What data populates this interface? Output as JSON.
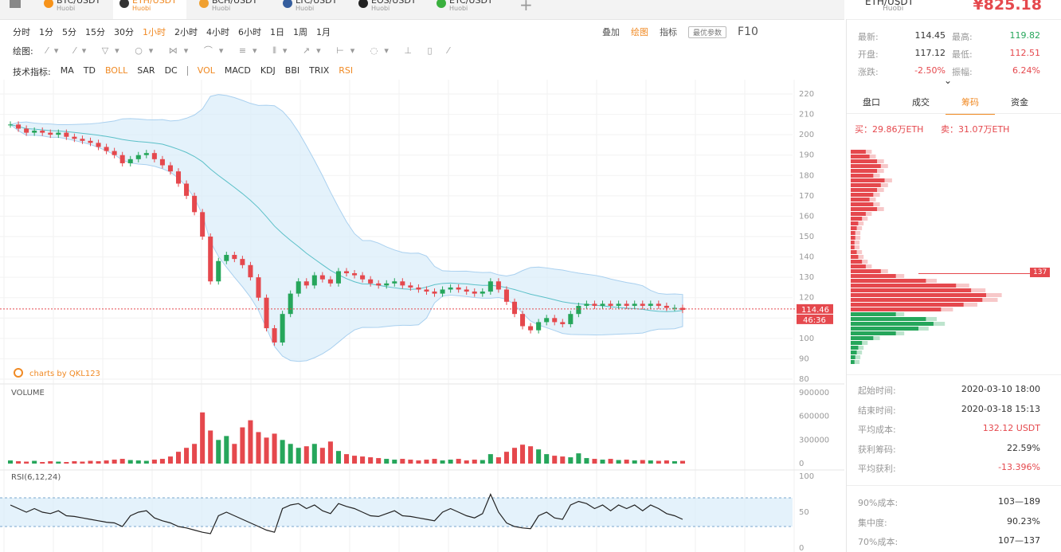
{
  "tabs": [
    {
      "symbol": "BTC/USDT",
      "exchange": "Huobi",
      "color": "#f7931a"
    },
    {
      "symbol": "ETH/USDT",
      "exchange": "Huobi",
      "color": "#333333",
      "active": true
    },
    {
      "symbol": "BCH/USDT",
      "exchange": "Huobi",
      "color": "#f0a030"
    },
    {
      "symbol": "LTC/USDT",
      "exchange": "Huobi",
      "color": "#345d9d"
    },
    {
      "symbol": "EOS/USDT",
      "exchange": "Huobi",
      "color": "#222222"
    },
    {
      "symbol": "ETC/USDT",
      "exchange": "Huobi",
      "color": "#3ab03e"
    }
  ],
  "header": {
    "symbol": "ETH/USDT",
    "exchange": "Huobi",
    "price": "¥825.18"
  },
  "periods": [
    {
      "label": "分时"
    },
    {
      "label": "1分"
    },
    {
      "label": "5分"
    },
    {
      "label": "15分"
    },
    {
      "label": "30分"
    },
    {
      "label": "1小时",
      "active": true
    },
    {
      "label": "2小时"
    },
    {
      "label": "4小时"
    },
    {
      "label": "6小时"
    },
    {
      "label": "1日"
    },
    {
      "label": "1周"
    },
    {
      "label": "1月"
    }
  ],
  "tools": [
    "叠加",
    "绘图",
    "指标"
  ],
  "best_params": "最优参数",
  "f10": "F10",
  "draw_label": "绘图:",
  "indicator_label": "技术指标:",
  "main_indicators": [
    {
      "name": "MA"
    },
    {
      "name": "TD"
    },
    {
      "name": "BOLL",
      "active": true
    },
    {
      "name": "SAR"
    },
    {
      "name": "DC"
    }
  ],
  "sub_indicators": [
    {
      "name": "VOL",
      "active": true
    },
    {
      "name": "MACD"
    },
    {
      "name": "KDJ"
    },
    {
      "name": "BBI"
    },
    {
      "name": "TRIX"
    },
    {
      "name": "RSI",
      "active": true
    }
  ],
  "watermark": "charts by QKL123",
  "chart_data": [
    {
      "type": "candlestick",
      "ylim": [
        80,
        220
      ],
      "yticks": [
        80,
        90,
        100,
        110,
        120,
        130,
        140,
        150,
        160,
        170,
        180,
        190,
        200,
        210,
        220
      ],
      "grid": true,
      "up_color": "#26a65b",
      "down_color": "#e5484d",
      "values": [
        205,
        203,
        201,
        202,
        201,
        200,
        201,
        199,
        198,
        197,
        196,
        194,
        192,
        190,
        186,
        188,
        190,
        191,
        188,
        185,
        182,
        176,
        170,
        162,
        150,
        128,
        138,
        141,
        139,
        136,
        130,
        120,
        105,
        98,
        112,
        122,
        128,
        126,
        131,
        129,
        127,
        133,
        132,
        131,
        129,
        127,
        126,
        127,
        128,
        126,
        125,
        124,
        123,
        122,
        124,
        125,
        124,
        123,
        122,
        123,
        128,
        124,
        118,
        112,
        106,
        104,
        108,
        110,
        108,
        107,
        112,
        116,
        117,
        116,
        117,
        116,
        117,
        116,
        117,
        116,
        117,
        116,
        115,
        115,
        114
      ],
      "last_price": 114.46,
      "countdown": "46:36"
    },
    {
      "type": "bar",
      "title": "VOLUME",
      "ylim": [
        0,
        900000
      ],
      "yticks": [
        0,
        300000,
        600000,
        900000
      ],
      "values": [
        40000,
        30000,
        25000,
        35000,
        20000,
        30000,
        25000,
        20000,
        30000,
        25000,
        35000,
        30000,
        40000,
        50000,
        60000,
        45000,
        40000,
        35000,
        50000,
        60000,
        90000,
        150000,
        200000,
        250000,
        650000,
        420000,
        300000,
        350000,
        250000,
        460000,
        550000,
        400000,
        330000,
        380000,
        300000,
        250000,
        200000,
        220000,
        250000,
        200000,
        280000,
        160000,
        120000,
        100000,
        90000,
        80000,
        70000,
        60000,
        50000,
        60000,
        50000,
        40000,
        50000,
        60000,
        40000,
        50000,
        60000,
        40000,
        50000,
        45000,
        120000,
        80000,
        150000,
        200000,
        240000,
        220000,
        180000,
        120000,
        100000,
        90000,
        80000,
        130000,
        70000,
        60000,
        50000,
        60000,
        45000,
        50000,
        40000,
        45000,
        40000,
        35000,
        40000,
        30000,
        35000
      ]
    },
    {
      "type": "line",
      "title": "RSI(6,12,24)",
      "ylim": [
        0,
        100
      ],
      "yticks": [
        0,
        50,
        100
      ],
      "band": [
        30,
        70
      ],
      "color": "#222222",
      "values": [
        60,
        55,
        50,
        55,
        50,
        48,
        52,
        45,
        44,
        42,
        40,
        38,
        36,
        35,
        30,
        45,
        50,
        52,
        42,
        38,
        35,
        30,
        28,
        25,
        22,
        20,
        45,
        50,
        45,
        40,
        35,
        30,
        25,
        22,
        55,
        60,
        62,
        55,
        60,
        52,
        48,
        62,
        58,
        55,
        50,
        45,
        44,
        48,
        52,
        45,
        44,
        42,
        40,
        38,
        50,
        55,
        50,
        45,
        42,
        48,
        75,
        50,
        35,
        30,
        28,
        27,
        45,
        50,
        42,
        40,
        60,
        65,
        62,
        55,
        60,
        52,
        60,
        55,
        60,
        52,
        60,
        55,
        48,
        45,
        40
      ]
    }
  ],
  "quote": [
    [
      "最新:",
      "114.45",
      "最高:",
      "119.82"
    ],
    [
      "开盘:",
      "117.12",
      "最低:",
      "112.51"
    ],
    [
      "涨跌:",
      "-2.50%",
      "振幅:",
      "6.24%"
    ]
  ],
  "panel_tabs": [
    {
      "label": "盘口"
    },
    {
      "label": "成交"
    },
    {
      "label": "筹码",
      "active": true
    },
    {
      "label": "资金"
    }
  ],
  "buy": "买：29.86万ETH",
  "sell": "卖：31.07万ETH",
  "chips": {
    "tag": "137",
    "series": [
      {
        "color": "#e5484d",
        "values": [
          20,
          25,
          35,
          40,
          35,
          30,
          45,
          40,
          35,
          30,
          25,
          30,
          35,
          20,
          15,
          10,
          8,
          6,
          6,
          5,
          5,
          8,
          10,
          15,
          20,
          40,
          60,
          100,
          140,
          160,
          180,
          175,
          150,
          120
        ]
      },
      {
        "color": "#26a65b",
        "values": [
          60,
          100,
          110,
          90,
          60,
          30,
          15,
          10,
          8,
          6,
          5
        ]
      }
    ]
  },
  "stats": [
    [
      "起始时间:",
      "2020-03-10 18:00"
    ],
    [
      "结束时间:",
      "2020-03-18 15:13"
    ],
    [
      "平均成本:",
      "132.12 USDT"
    ],
    [
      "获利筹码:",
      "22.59%"
    ],
    [
      "平均获利:",
      "-13.396%"
    ]
  ],
  "stats2": [
    [
      "90%成本:",
      "103—189"
    ],
    [
      "集中度:",
      "90.23%"
    ],
    [
      "70%成本:",
      "107—137"
    ]
  ]
}
